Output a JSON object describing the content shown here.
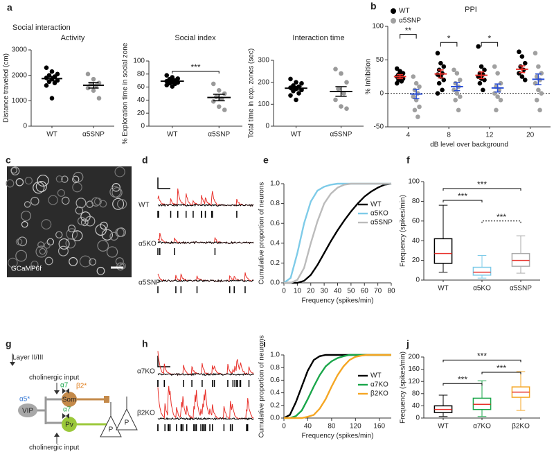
{
  "panel_labels": [
    "a",
    "b",
    "c",
    "d",
    "e",
    "f",
    "g",
    "h",
    "i",
    "j"
  ],
  "header": "Social interaction",
  "image": {
    "label": "GCaMP6f"
  },
  "traces_d": [
    "WT",
    "α5KO",
    "α5SNP"
  ],
  "traces_h": [
    "α7KO",
    "β2KO"
  ],
  "diagram": {
    "layer": "Layer II/III",
    "input_top": "cholinergic input",
    "input_bottom": "cholinergic input",
    "a5": "α5*",
    "a7_som": "α7",
    "b2": "β2*",
    "som": "Som",
    "vip": "VIP",
    "a7_pv": "α7",
    "pv": "Pv",
    "p1": "P",
    "p2": "P"
  },
  "chart_data": [
    {
      "type": "dot",
      "title": "Activity",
      "ylabel": "Distance traveled (cm)",
      "categories": [
        "WT",
        "α5SNP"
      ],
      "colors": [
        "#000000",
        "#9a9a9a"
      ],
      "points": [
        [
          2300,
          2150,
          2050,
          2000,
          1950,
          1900,
          1850,
          1800,
          1750,
          1700,
          1600,
          1100
        ],
        [
          2050,
          1850,
          1700,
          1650,
          1600,
          1500,
          1400,
          1100
        ]
      ],
      "means": [
        1870,
        1610
      ],
      "sems": [
        80,
        110
      ],
      "ylim": [
        0,
        3000
      ],
      "yticks": [
        0,
        1000,
        2000,
        3000
      ]
    },
    {
      "type": "dot",
      "title": "Social index",
      "ylabel": "% Exploration time in social zone",
      "categories": [
        "WT",
        "α5SNP"
      ],
      "colors": [
        "#000000",
        "#9a9a9a"
      ],
      "points": [
        [
          78,
          75,
          73,
          72,
          70,
          69,
          68,
          67,
          66,
          65,
          63,
          61
        ],
        [
          65,
          55,
          50,
          45,
          42,
          38,
          30,
          25
        ]
      ],
      "means": [
        69,
        44
      ],
      "sems": [
        2,
        5
      ],
      "ylim": [
        0,
        100
      ],
      "yticks": [
        0,
        20,
        40,
        60,
        80,
        100
      ],
      "annotations": [
        "***"
      ]
    },
    {
      "type": "dot",
      "title": "Interaction time",
      "ylabel": "Total time in exp. zones (sec)",
      "categories": [
        "WT",
        "α5SNP"
      ],
      "colors": [
        "#000000",
        "#9a9a9a"
      ],
      "points": [
        [
          215,
          200,
          195,
          185,
          180,
          175,
          170,
          165,
          160,
          150,
          140,
          120
        ],
        [
          260,
          240,
          200,
          170,
          150,
          120,
          90,
          80
        ]
      ],
      "means": [
        173,
        158
      ],
      "sems": [
        8,
        22
      ],
      "ylim": [
        0,
        300
      ],
      "yticks": [
        0,
        100,
        200,
        300
      ]
    },
    {
      "type": "dot",
      "title": "PPI",
      "ylabel": "% Inhibition",
      "xlabel": "dB level over background",
      "categories": [
        "4",
        "8",
        "12",
        "20"
      ],
      "zero_line": true,
      "series": [
        {
          "name": "WT",
          "color": "#000000",
          "mean_color": "#e8302a",
          "points": [
            [
              37,
              33,
              30,
              28,
              27,
              25,
              24,
              22,
              20,
              18,
              15
            ],
            [
              60,
              45,
              40,
              35,
              30,
              28,
              25,
              20,
              15,
              5,
              0
            ],
            [
              70,
              40,
              35,
              30,
              28,
              25,
              22,
              20,
              15,
              5
            ],
            [
              62,
              55,
              45,
              40,
              35,
              30,
              25,
              20
            ]
          ],
          "means": [
            25,
            29,
            27,
            36
          ],
          "sems": [
            3,
            6,
            5,
            5
          ]
        },
        {
          "name": "α5SNP",
          "color": "#a0a0a0",
          "mean_color": "#2a4fd6",
          "points": [
            [
              25,
              15,
              10,
              5,
              0,
              -5,
              -10,
              -20,
              -25,
              -35
            ],
            [
              35,
              30,
              20,
              15,
              10,
              5,
              0,
              -5,
              -10,
              -25
            ],
            [
              40,
              30,
              15,
              10,
              5,
              0,
              -5,
              -10,
              -25
            ],
            [
              60,
              40,
              30,
              25,
              20,
              15,
              5,
              0,
              -10,
              -25
            ]
          ],
          "means": [
            -1,
            10,
            8,
            21
          ],
          "sems": [
            7,
            6,
            6,
            8
          ]
        }
      ],
      "ylim": [
        -50,
        100
      ],
      "yticks": [
        -50,
        0,
        50,
        100
      ],
      "annotations": [
        "**",
        "*",
        "*"
      ]
    },
    {
      "type": "line",
      "xlabel": "Frequency (spikes/min)",
      "ylabel": "Cumulative proportion of neurons",
      "legend": "upper right",
      "x": [
        0,
        5,
        10,
        15,
        20,
        25,
        30,
        35,
        40,
        45,
        50,
        55,
        60,
        65,
        70,
        75,
        80
      ],
      "series": [
        {
          "name": "WT",
          "color": "#000000",
          "values": [
            0,
            0,
            0,
            0.02,
            0.08,
            0.18,
            0.3,
            0.42,
            0.53,
            0.63,
            0.72,
            0.8,
            0.87,
            0.92,
            0.96,
            0.99,
            1.0
          ]
        },
        {
          "name": "α5KO",
          "color": "#7ecbe8",
          "values": [
            0,
            0.05,
            0.3,
            0.6,
            0.82,
            0.93,
            0.97,
            0.99,
            1.0,
            1.0,
            1.0,
            1.0,
            1.0,
            1.0,
            1.0,
            1.0,
            1.0
          ]
        },
        {
          "name": "α5SNP",
          "color": "#bbbbbb",
          "values": [
            0,
            0,
            0.03,
            0.15,
            0.4,
            0.62,
            0.8,
            0.9,
            0.96,
            0.99,
            1.0,
            1.0,
            1.0,
            1.0,
            1.0,
            1.0,
            1.0
          ]
        }
      ],
      "xlim": [
        0,
        80
      ],
      "xticks": [
        0,
        10,
        20,
        30,
        40,
        50,
        60,
        70,
        80
      ],
      "ylim": [
        0,
        1.0
      ],
      "yticks": [
        {
          "value": 0,
          "label": "0.0"
        },
        0.2,
        0.4,
        0.6,
        0.8,
        {
          "value": 1.0,
          "label": "1.0"
        }
      ]
    },
    {
      "type": "box",
      "ylabel": "Frequency (spikes/min)",
      "categories": [
        "WT",
        "α5KO",
        "α5SNP"
      ],
      "median_color": "#e8302a",
      "boxes": [
        {
          "min": 8,
          "q1": 17,
          "median": 27,
          "q3": 42,
          "max": 76,
          "color": "#000000"
        },
        {
          "min": 2,
          "q1": 5,
          "median": 8,
          "q3": 13,
          "max": 25,
          "color": "#7ecbe8"
        },
        {
          "min": 7,
          "q1": 14,
          "median": 20,
          "q3": 27,
          "max": 45,
          "color": "#aaaaaa"
        }
      ],
      "ylim": [
        0,
        100
      ],
      "yticks": [
        0,
        20,
        40,
        60,
        80,
        100
      ],
      "annotations": [
        "***",
        "***",
        "***"
      ]
    },
    {
      "type": "line",
      "xlabel": "Frequency (spikes/min)",
      "ylabel": "Cumulative proportion of neurons",
      "legend": "upper right",
      "x": [
        0,
        10,
        20,
        30,
        40,
        50,
        60,
        70,
        80,
        90,
        100,
        110,
        120,
        130,
        140,
        150,
        160,
        170,
        180
      ],
      "series": [
        {
          "name": "WT",
          "color": "#000000",
          "values": [
            0,
            0.05,
            0.25,
            0.5,
            0.75,
            0.92,
            0.98,
            1.0,
            1.0,
            1.0,
            1.0,
            1.0,
            1.0,
            1.0,
            1.0,
            1.0,
            1.0,
            1.0,
            1.0
          ]
        },
        {
          "name": "α7KO",
          "color": "#1aa64a",
          "values": [
            0,
            0,
            0.03,
            0.12,
            0.3,
            0.5,
            0.68,
            0.82,
            0.9,
            0.95,
            0.98,
            1.0,
            1.0,
            1.0,
            1.0,
            1.0,
            1.0,
            1.0,
            1.0
          ]
        },
        {
          "name": "β2KO",
          "color": "#f5a623",
          "values": [
            0,
            0,
            0,
            0,
            0.02,
            0.05,
            0.15,
            0.3,
            0.5,
            0.68,
            0.82,
            0.92,
            0.97,
            0.99,
            1.0,
            1.0,
            1.0,
            1.0,
            1.0
          ]
        }
      ],
      "xlim": [
        0,
        180
      ],
      "xticks": [
        0,
        40,
        80,
        120,
        160
      ],
      "ylim": [
        0,
        1.0
      ],
      "yticks": [
        {
          "value": 0,
          "label": "0.0"
        },
        0.2,
        0.4,
        0.6,
        0.8,
        {
          "value": 1.0,
          "label": "1.0"
        }
      ]
    },
    {
      "type": "box",
      "ylabel": "Frequency (spikes/min)",
      "categories": [
        "WT",
        "α7KO",
        "β2KO"
      ],
      "median_color": "#e8302a",
      "boxes": [
        {
          "min": 5,
          "q1": 18,
          "median": 28,
          "q3": 40,
          "max": 75,
          "color": "#000000"
        },
        {
          "min": 5,
          "q1": 28,
          "median": 45,
          "q3": 65,
          "max": 122,
          "color": "#1aa64a"
        },
        {
          "min": 25,
          "q1": 68,
          "median": 85,
          "q3": 102,
          "max": 152,
          "color": "#f5a623"
        }
      ],
      "ylim": [
        0,
        200
      ],
      "yticks": [
        0,
        40,
        80,
        120,
        160,
        200
      ],
      "annotations": [
        "***",
        "***",
        "***"
      ]
    }
  ]
}
